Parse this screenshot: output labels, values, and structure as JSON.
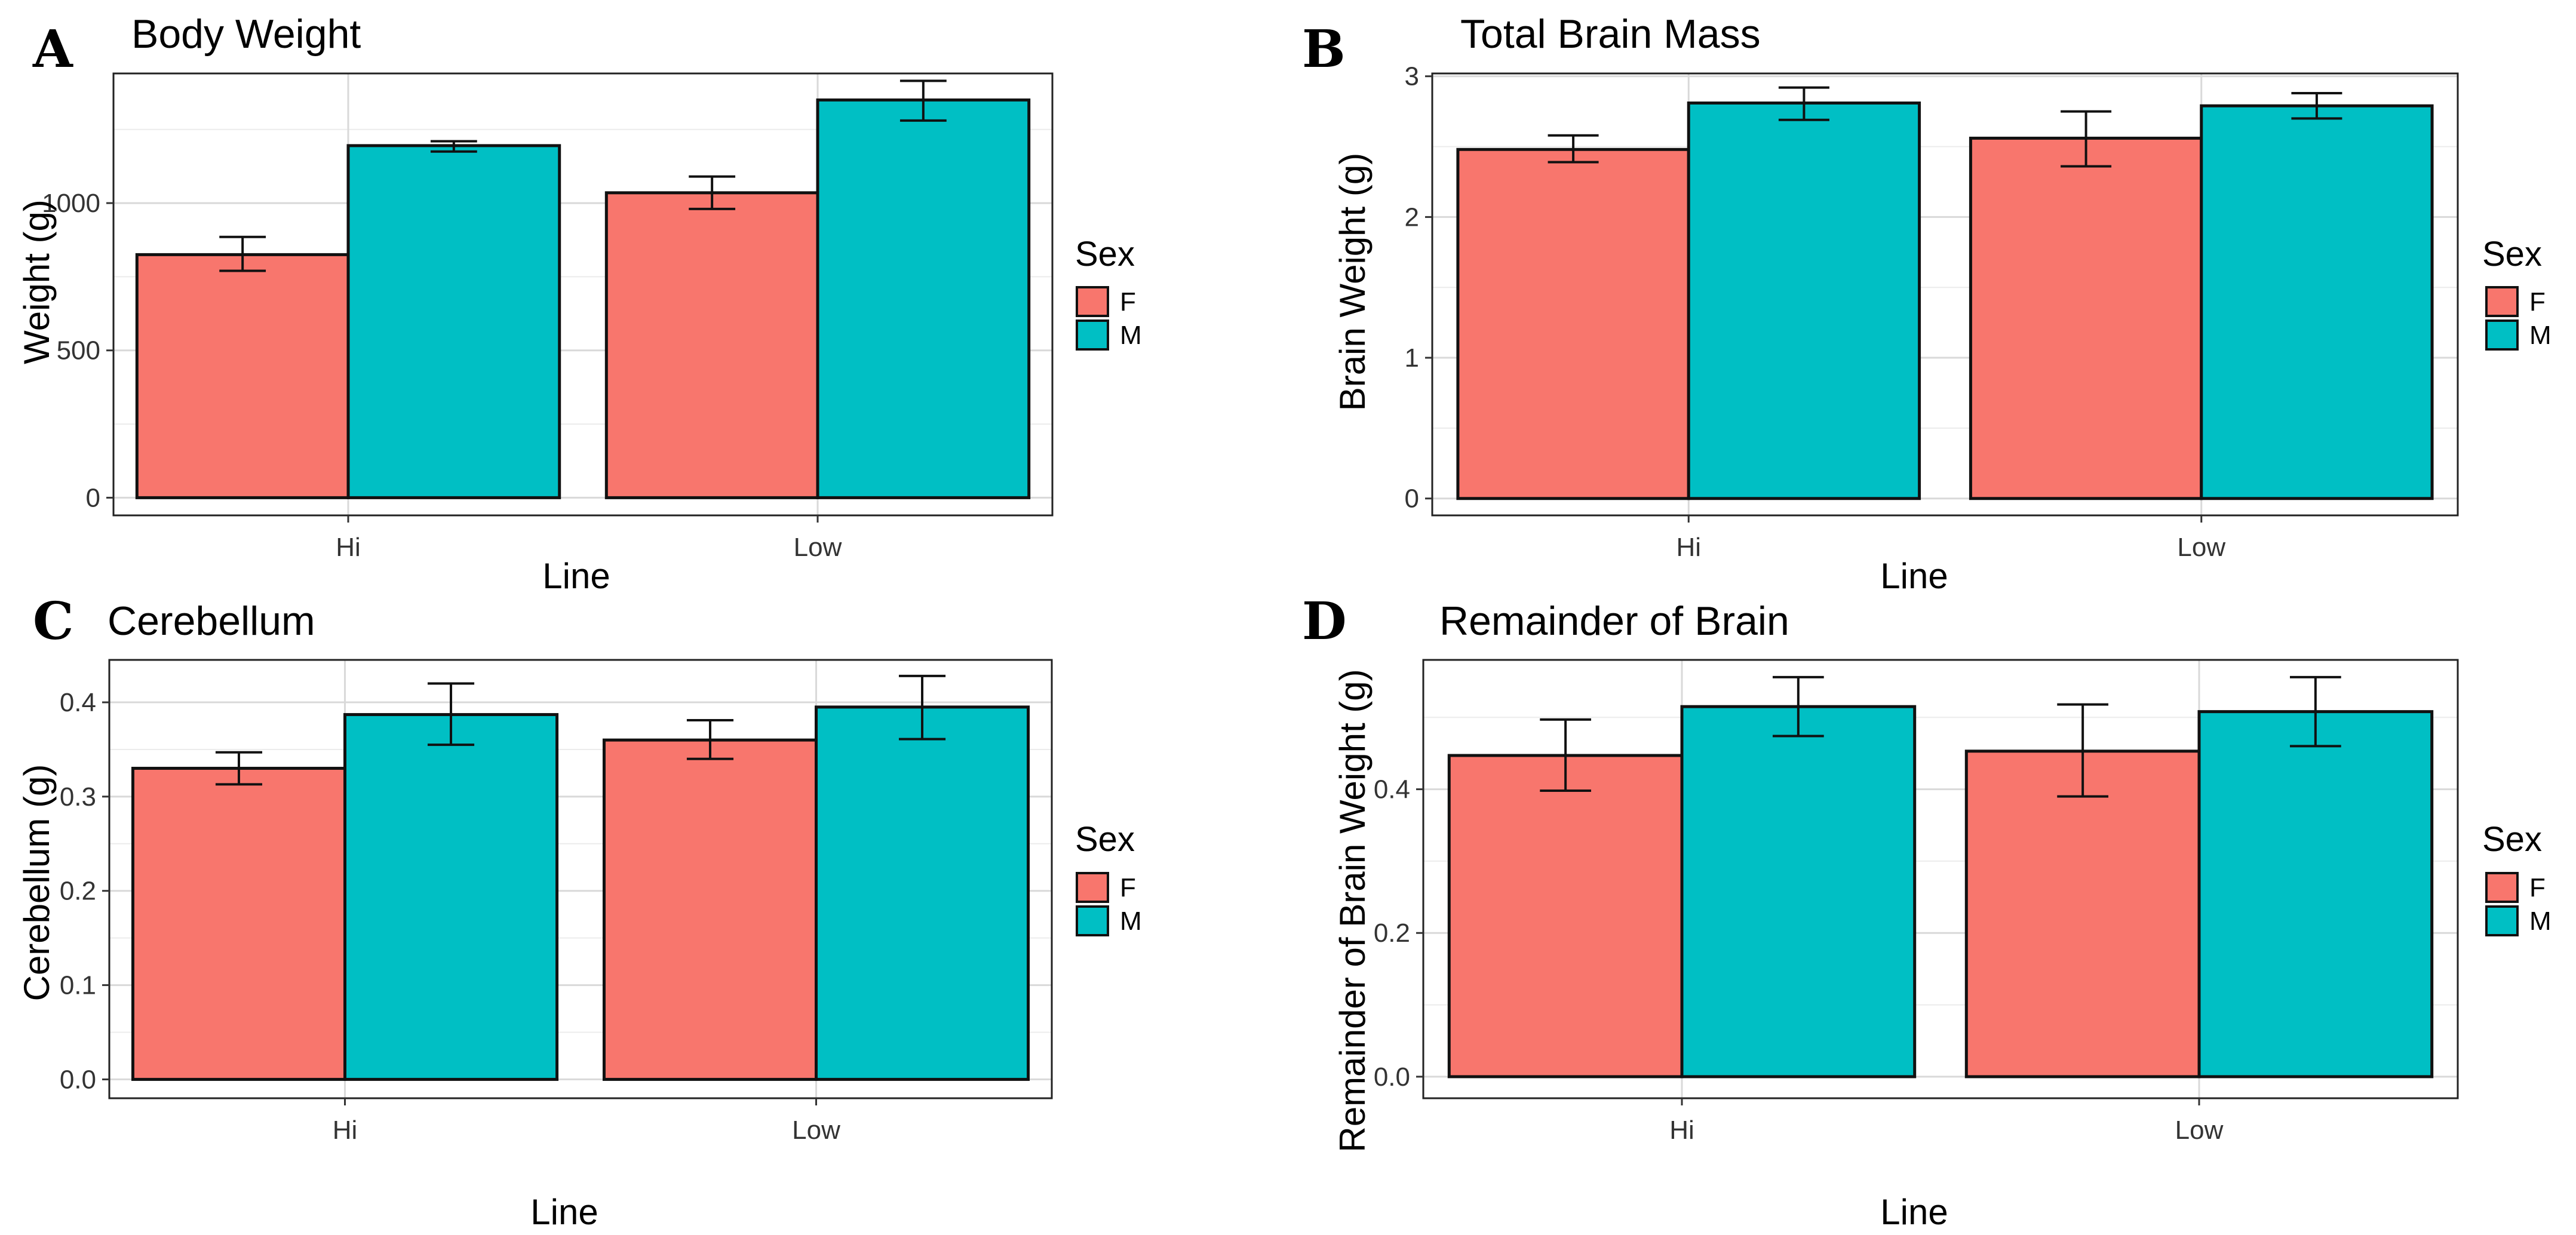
{
  "figure": {
    "panels": [
      "A",
      "B",
      "C",
      "D"
    ]
  },
  "legend": {
    "title": "Sex",
    "entries": [
      {
        "label": "F",
        "color": "#F8766D"
      },
      {
        "label": "M",
        "color": "#00BFC4"
      }
    ]
  },
  "chart_data": [
    {
      "panel": "A",
      "type": "bar",
      "title": "Body Weight",
      "xlabel": "Line",
      "ylabel": "Weight (g)",
      "categories": [
        "Hi",
        "Low"
      ],
      "ylim": [
        -60,
        1440
      ],
      "yticks": [
        0,
        500,
        1000
      ],
      "ytick_labels": [
        "0",
        "500",
        "1000"
      ],
      "series": [
        {
          "name": "F",
          "color": "#F8766D",
          "values": [
            825,
            1035
          ],
          "error": [
            [
              770,
              885
            ],
            [
              980,
              1090
            ]
          ]
        },
        {
          "name": "M",
          "color": "#00BFC4",
          "values": [
            1195,
            1350
          ],
          "error": [
            [
              1175,
              1210
            ],
            [
              1280,
              1415
            ]
          ]
        }
      ]
    },
    {
      "panel": "B",
      "type": "bar",
      "title": "Total Brain Mass",
      "xlabel": "Line",
      "ylabel": "Brain Weight (g)",
      "categories": [
        "Hi",
        "Low"
      ],
      "ylim": [
        -0.12,
        3.02
      ],
      "yticks": [
        0,
        1,
        2,
        3
      ],
      "ytick_labels": [
        "0",
        "1",
        "2",
        "3"
      ],
      "series": [
        {
          "name": "F",
          "color": "#F8766D",
          "values": [
            2.48,
            2.56
          ],
          "error": [
            [
              2.39,
              2.58
            ],
            [
              2.36,
              2.75
            ]
          ]
        },
        {
          "name": "M",
          "color": "#00BFC4",
          "values": [
            2.81,
            2.79
          ],
          "error": [
            [
              2.69,
              2.92
            ],
            [
              2.7,
              2.88
            ]
          ]
        }
      ]
    },
    {
      "panel": "C",
      "type": "bar",
      "title": "Cerebellum",
      "xlabel": "Line",
      "ylabel": "Cerebellum (g)",
      "categories": [
        "Hi",
        "Low"
      ],
      "ylim": [
        -0.02,
        0.445
      ],
      "yticks": [
        0,
        0.1,
        0.2,
        0.3,
        0.4
      ],
      "ytick_labels": [
        "0.0",
        "0.1",
        "0.2",
        "0.3",
        "0.4"
      ],
      "series": [
        {
          "name": "F",
          "color": "#F8766D",
          "values": [
            0.33,
            0.36
          ],
          "error": [
            [
              0.313,
              0.347
            ],
            [
              0.34,
              0.381
            ]
          ]
        },
        {
          "name": "M",
          "color": "#00BFC4",
          "values": [
            0.387,
            0.395
          ],
          "error": [
            [
              0.355,
              0.42
            ],
            [
              0.361,
              0.428
            ]
          ]
        }
      ]
    },
    {
      "panel": "D",
      "type": "bar",
      "title": "Remainder of Brain",
      "xlabel": "Line",
      "ylabel": "Remainder of Brain Weight (g)",
      "categories": [
        "Hi",
        "Low"
      ],
      "ylim": [
        -0.03,
        0.58
      ],
      "yticks": [
        0,
        0.2,
        0.4
      ],
      "ytick_labels": [
        "0.0",
        "0.2",
        "0.4"
      ],
      "series": [
        {
          "name": "F",
          "color": "#F8766D",
          "values": [
            0.447,
            0.453
          ],
          "error": [
            [
              0.398,
              0.497
            ],
            [
              0.39,
              0.518
            ]
          ]
        },
        {
          "name": "M",
          "color": "#00BFC4",
          "values": [
            0.515,
            0.508
          ],
          "error": [
            [
              0.474,
              0.556
            ],
            [
              0.46,
              0.556
            ]
          ]
        }
      ]
    }
  ]
}
